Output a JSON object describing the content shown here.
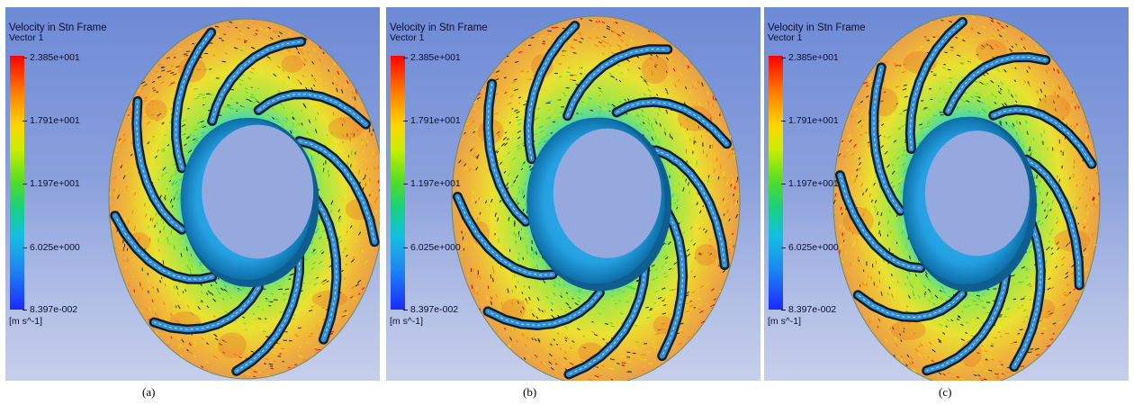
{
  "legend": {
    "title": "Velocity in Stn Frame",
    "subtitle": "Vector 1",
    "ticks": [
      "2.385e+001",
      "1.791e+001",
      "1.197e+001",
      "6.025e+000",
      "8.397e-002"
    ],
    "unit": "[m s^-1]"
  },
  "colormap": [
    "#ff0000",
    "#ff7a00",
    "#ffd400",
    "#c8ee00",
    "#4fdc2a",
    "#18d07f",
    "#14bfe0",
    "#1d87f0",
    "#1a2aff"
  ],
  "panels": [
    {
      "caption": "(a)"
    },
    {
      "caption": "(b)"
    },
    {
      "caption": "(c)"
    }
  ]
}
